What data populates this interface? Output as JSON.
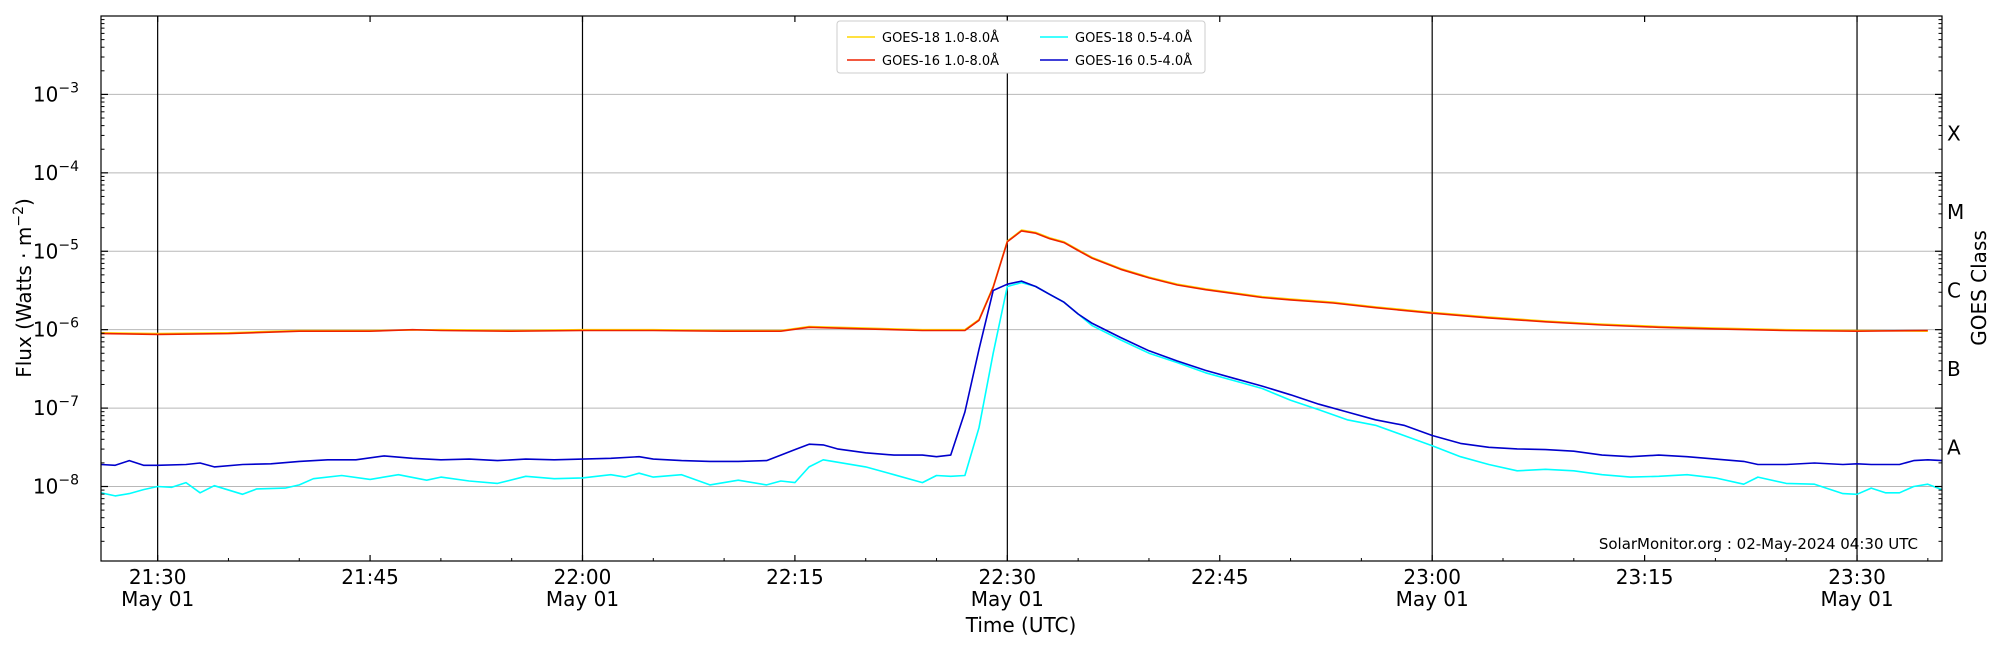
{
  "chart_data": {
    "type": "line",
    "xlabel": "Time (UTC)",
    "ylabel_main": "Flux (Watts · m",
    "ylabel_exp": "−2",
    "ylabel_close": ")",
    "ylabel_right": "GOES Class",
    "credit": "SolarMonitor.org : 02-May-2024 04:30 UTC",
    "x_range_minutes": [
      1286,
      1416
    ],
    "y_log_range": [
      -8.95,
      -2.0
    ],
    "y_scale": "log",
    "grid": "horizontal at decades",
    "legend_placement": "top-center",
    "x_ticks": [
      {
        "min": 1290,
        "time": "21:30",
        "date": "May 01",
        "major": true
      },
      {
        "min": 1305,
        "time": "21:45",
        "date": "",
        "major": false
      },
      {
        "min": 1320,
        "time": "22:00",
        "date": "May 01",
        "major": true
      },
      {
        "min": 1335,
        "time": "22:15",
        "date": "",
        "major": false
      },
      {
        "min": 1350,
        "time": "22:30",
        "date": "May 01",
        "major": true
      },
      {
        "min": 1365,
        "time": "22:45",
        "date": "",
        "major": false
      },
      {
        "min": 1380,
        "time": "23:00",
        "date": "May 01",
        "major": true
      },
      {
        "min": 1395,
        "time": "23:15",
        "date": "",
        "major": false
      },
      {
        "min": 1410,
        "time": "23:30",
        "date": "May 01",
        "major": true
      }
    ],
    "y_ticks": [
      {
        "exp": -8,
        "base": "10",
        "power": "−8"
      },
      {
        "exp": -7,
        "base": "10",
        "power": "−7"
      },
      {
        "exp": -6,
        "base": "10",
        "power": "−6"
      },
      {
        "exp": -5,
        "base": "10",
        "power": "−5"
      },
      {
        "exp": -4,
        "base": "10",
        "power": "−4"
      },
      {
        "exp": -3,
        "base": "10",
        "power": "−3"
      }
    ],
    "goes_classes": [
      {
        "label": "A",
        "exp": -7.5
      },
      {
        "label": "B",
        "exp": -6.5
      },
      {
        "label": "C",
        "exp": -5.5
      },
      {
        "label": "M",
        "exp": -4.5
      },
      {
        "label": "X",
        "exp": -3.5
      }
    ],
    "legend": [
      {
        "label": "GOES-18 1.0-8.0Å",
        "color": "#ffd700"
      },
      {
        "label": "GOES-18 0.5-4.0Å",
        "color": "#00ffff"
      },
      {
        "label": "GOES-16 1.0-8.0Å",
        "color": "#ee2200"
      },
      {
        "label": "GOES-16 0.5-4.0Å",
        "color": "#0000cc"
      }
    ],
    "series": [
      {
        "name": "GOES-18 1.0-8.0Å",
        "color": "#ffd700",
        "points": [
          [
            1286,
            -6.04
          ],
          [
            1290,
            -6.05
          ],
          [
            1295,
            -6.04
          ],
          [
            1300,
            -6.01
          ],
          [
            1305,
            -6.01
          ],
          [
            1310,
            -6.0
          ],
          [
            1315,
            -6.01
          ],
          [
            1320,
            -6.0
          ],
          [
            1325,
            -6.0
          ],
          [
            1330,
            -6.01
          ],
          [
            1334,
            -6.01
          ],
          [
            1336,
            -5.96
          ],
          [
            1340,
            -5.98
          ],
          [
            1344,
            -6.0
          ],
          [
            1347,
            -6.0
          ],
          [
            1348,
            -5.87
          ],
          [
            1349,
            -5.45
          ],
          [
            1350,
            -4.87
          ],
          [
            1351,
            -4.73
          ],
          [
            1352,
            -4.76
          ],
          [
            1353,
            -4.83
          ],
          [
            1354,
            -4.88
          ],
          [
            1355,
            -4.98
          ],
          [
            1356,
            -5.08
          ],
          [
            1358,
            -5.22
          ],
          [
            1360,
            -5.33
          ],
          [
            1362,
            -5.42
          ],
          [
            1364,
            -5.48
          ],
          [
            1366,
            -5.53
          ],
          [
            1368,
            -5.58
          ],
          [
            1370,
            -5.61
          ],
          [
            1373,
            -5.65
          ],
          [
            1376,
            -5.71
          ],
          [
            1380,
            -5.78
          ],
          [
            1384,
            -5.84
          ],
          [
            1388,
            -5.89
          ],
          [
            1392,
            -5.93
          ],
          [
            1396,
            -5.96
          ],
          [
            1400,
            -5.98
          ],
          [
            1405,
            -6.0
          ],
          [
            1410,
            -6.01
          ],
          [
            1415,
            -6.02
          ]
        ]
      },
      {
        "name": "GOES-16 1.0-8.0Å",
        "color": "#ee2200",
        "points": [
          [
            1286,
            -6.05
          ],
          [
            1290,
            -6.06
          ],
          [
            1295,
            -6.05
          ],
          [
            1300,
            -6.02
          ],
          [
            1305,
            -6.02
          ],
          [
            1308,
            -6.0
          ],
          [
            1310,
            -6.01
          ],
          [
            1315,
            -6.02
          ],
          [
            1320,
            -6.01
          ],
          [
            1325,
            -6.01
          ],
          [
            1330,
            -6.02
          ],
          [
            1334,
            -6.02
          ],
          [
            1336,
            -5.97
          ],
          [
            1340,
            -5.99
          ],
          [
            1344,
            -6.01
          ],
          [
            1347,
            -6.01
          ],
          [
            1348,
            -5.88
          ],
          [
            1349,
            -5.46
          ],
          [
            1350,
            -4.88
          ],
          [
            1351,
            -4.74
          ],
          [
            1352,
            -4.77
          ],
          [
            1353,
            -4.84
          ],
          [
            1354,
            -4.89
          ],
          [
            1355,
            -4.99
          ],
          [
            1356,
            -5.09
          ],
          [
            1358,
            -5.23
          ],
          [
            1360,
            -5.34
          ],
          [
            1362,
            -5.43
          ],
          [
            1364,
            -5.49
          ],
          [
            1366,
            -5.54
          ],
          [
            1368,
            -5.59
          ],
          [
            1370,
            -5.62
          ],
          [
            1373,
            -5.66
          ],
          [
            1376,
            -5.72
          ],
          [
            1380,
            -5.79
          ],
          [
            1384,
            -5.85
          ],
          [
            1388,
            -5.9
          ],
          [
            1392,
            -5.94
          ],
          [
            1396,
            -5.97
          ],
          [
            1400,
            -5.99
          ],
          [
            1405,
            -6.01
          ],
          [
            1410,
            -6.02
          ],
          [
            1415,
            -6.01
          ]
        ]
      },
      {
        "name": "GOES-18 0.5-4.0Å",
        "color": "#00ffff",
        "points": [
          [
            1286,
            -8.08
          ],
          [
            1287,
            -8.12
          ],
          [
            1288,
            -8.09
          ],
          [
            1289,
            -8.04
          ],
          [
            1290,
            -8.0
          ],
          [
            1291,
            -8.01
          ],
          [
            1292,
            -7.95
          ],
          [
            1293,
            -8.08
          ],
          [
            1294,
            -7.99
          ],
          [
            1296,
            -8.1
          ],
          [
            1297,
            -8.03
          ],
          [
            1299,
            -8.02
          ],
          [
            1300,
            -7.98
          ],
          [
            1301,
            -7.9
          ],
          [
            1303,
            -7.86
          ],
          [
            1305,
            -7.91
          ],
          [
            1307,
            -7.85
          ],
          [
            1309,
            -7.92
          ],
          [
            1310,
            -7.88
          ],
          [
            1312,
            -7.93
          ],
          [
            1314,
            -7.96
          ],
          [
            1316,
            -7.87
          ],
          [
            1318,
            -7.9
          ],
          [
            1320,
            -7.89
          ],
          [
            1322,
            -7.85
          ],
          [
            1323,
            -7.88
          ],
          [
            1324,
            -7.83
          ],
          [
            1325,
            -7.88
          ],
          [
            1327,
            -7.85
          ],
          [
            1329,
            -7.98
          ],
          [
            1331,
            -7.92
          ],
          [
            1333,
            -7.98
          ],
          [
            1334,
            -7.93
          ],
          [
            1335,
            -7.95
          ],
          [
            1336,
            -7.75
          ],
          [
            1337,
            -7.66
          ],
          [
            1338,
            -7.69
          ],
          [
            1340,
            -7.75
          ],
          [
            1342,
            -7.85
          ],
          [
            1344,
            -7.95
          ],
          [
            1345,
            -7.86
          ],
          [
            1346,
            -7.87
          ],
          [
            1347,
            -7.86
          ],
          [
            1348,
            -7.25
          ],
          [
            1349,
            -6.3
          ],
          [
            1350,
            -5.45
          ],
          [
            1351,
            -5.4
          ],
          [
            1352,
            -5.45
          ],
          [
            1353,
            -5.55
          ],
          [
            1354,
            -5.65
          ],
          [
            1355,
            -5.8
          ],
          [
            1356,
            -5.95
          ],
          [
            1358,
            -6.13
          ],
          [
            1360,
            -6.3
          ],
          [
            1362,
            -6.42
          ],
          [
            1364,
            -6.55
          ],
          [
            1366,
            -6.65
          ],
          [
            1368,
            -6.75
          ],
          [
            1370,
            -6.9
          ],
          [
            1372,
            -7.02
          ],
          [
            1374,
            -7.15
          ],
          [
            1376,
            -7.22
          ],
          [
            1378,
            -7.35
          ],
          [
            1380,
            -7.48
          ],
          [
            1382,
            -7.62
          ],
          [
            1384,
            -7.72
          ],
          [
            1386,
            -7.8
          ],
          [
            1388,
            -7.78
          ],
          [
            1390,
            -7.8
          ],
          [
            1392,
            -7.85
          ],
          [
            1394,
            -7.88
          ],
          [
            1396,
            -7.87
          ],
          [
            1398,
            -7.85
          ],
          [
            1400,
            -7.89
          ],
          [
            1402,
            -7.97
          ],
          [
            1403,
            -7.88
          ],
          [
            1405,
            -7.96
          ],
          [
            1407,
            -7.97
          ],
          [
            1409,
            -8.09
          ],
          [
            1410,
            -8.1
          ],
          [
            1411,
            -8.02
          ],
          [
            1412,
            -8.08
          ],
          [
            1413,
            -8.08
          ],
          [
            1414,
            -8.0
          ],
          [
            1415,
            -7.97
          ],
          [
            1416,
            -8.04
          ]
        ]
      },
      {
        "name": "GOES-16 0.5-4.0Å",
        "color": "#0000cc",
        "points": [
          [
            1286,
            -7.72
          ],
          [
            1287,
            -7.73
          ],
          [
            1288,
            -7.67
          ],
          [
            1289,
            -7.73
          ],
          [
            1290,
            -7.73
          ],
          [
            1292,
            -7.72
          ],
          [
            1293,
            -7.7
          ],
          [
            1294,
            -7.75
          ],
          [
            1296,
            -7.72
          ],
          [
            1298,
            -7.71
          ],
          [
            1300,
            -7.68
          ],
          [
            1302,
            -7.66
          ],
          [
            1304,
            -7.66
          ],
          [
            1306,
            -7.61
          ],
          [
            1308,
            -7.64
          ],
          [
            1310,
            -7.66
          ],
          [
            1312,
            -7.65
          ],
          [
            1314,
            -7.67
          ],
          [
            1316,
            -7.65
          ],
          [
            1318,
            -7.66
          ],
          [
            1320,
            -7.65
          ],
          [
            1322,
            -7.64
          ],
          [
            1324,
            -7.62
          ],
          [
            1325,
            -7.65
          ],
          [
            1327,
            -7.67
          ],
          [
            1329,
            -7.68
          ],
          [
            1331,
            -7.68
          ],
          [
            1333,
            -7.67
          ],
          [
            1334,
            -7.6
          ],
          [
            1335,
            -7.53
          ],
          [
            1336,
            -7.46
          ],
          [
            1337,
            -7.47
          ],
          [
            1338,
            -7.52
          ],
          [
            1340,
            -7.57
          ],
          [
            1342,
            -7.6
          ],
          [
            1344,
            -7.6
          ],
          [
            1345,
            -7.62
          ],
          [
            1346,
            -7.6
          ],
          [
            1347,
            -7.05
          ],
          [
            1348,
            -6.25
          ],
          [
            1349,
            -5.5
          ],
          [
            1350,
            -5.42
          ],
          [
            1351,
            -5.38
          ],
          [
            1352,
            -5.45
          ],
          [
            1353,
            -5.55
          ],
          [
            1354,
            -5.65
          ],
          [
            1355,
            -5.8
          ],
          [
            1356,
            -5.92
          ],
          [
            1358,
            -6.1
          ],
          [
            1360,
            -6.27
          ],
          [
            1362,
            -6.4
          ],
          [
            1364,
            -6.52
          ],
          [
            1366,
            -6.62
          ],
          [
            1368,
            -6.72
          ],
          [
            1370,
            -6.83
          ],
          [
            1372,
            -6.95
          ],
          [
            1374,
            -7.05
          ],
          [
            1376,
            -7.15
          ],
          [
            1378,
            -7.22
          ],
          [
            1380,
            -7.35
          ],
          [
            1382,
            -7.45
          ],
          [
            1384,
            -7.5
          ],
          [
            1386,
            -7.52
          ],
          [
            1388,
            -7.53
          ],
          [
            1390,
            -7.55
          ],
          [
            1392,
            -7.6
          ],
          [
            1394,
            -7.62
          ],
          [
            1396,
            -7.6
          ],
          [
            1398,
            -7.62
          ],
          [
            1400,
            -7.65
          ],
          [
            1402,
            -7.68
          ],
          [
            1403,
            -7.72
          ],
          [
            1405,
            -7.72
          ],
          [
            1407,
            -7.7
          ],
          [
            1409,
            -7.72
          ],
          [
            1410,
            -7.71
          ],
          [
            1411,
            -7.72
          ],
          [
            1413,
            -7.72
          ],
          [
            1414,
            -7.67
          ],
          [
            1415,
            -7.66
          ],
          [
            1416,
            -7.67
          ]
        ]
      }
    ]
  }
}
